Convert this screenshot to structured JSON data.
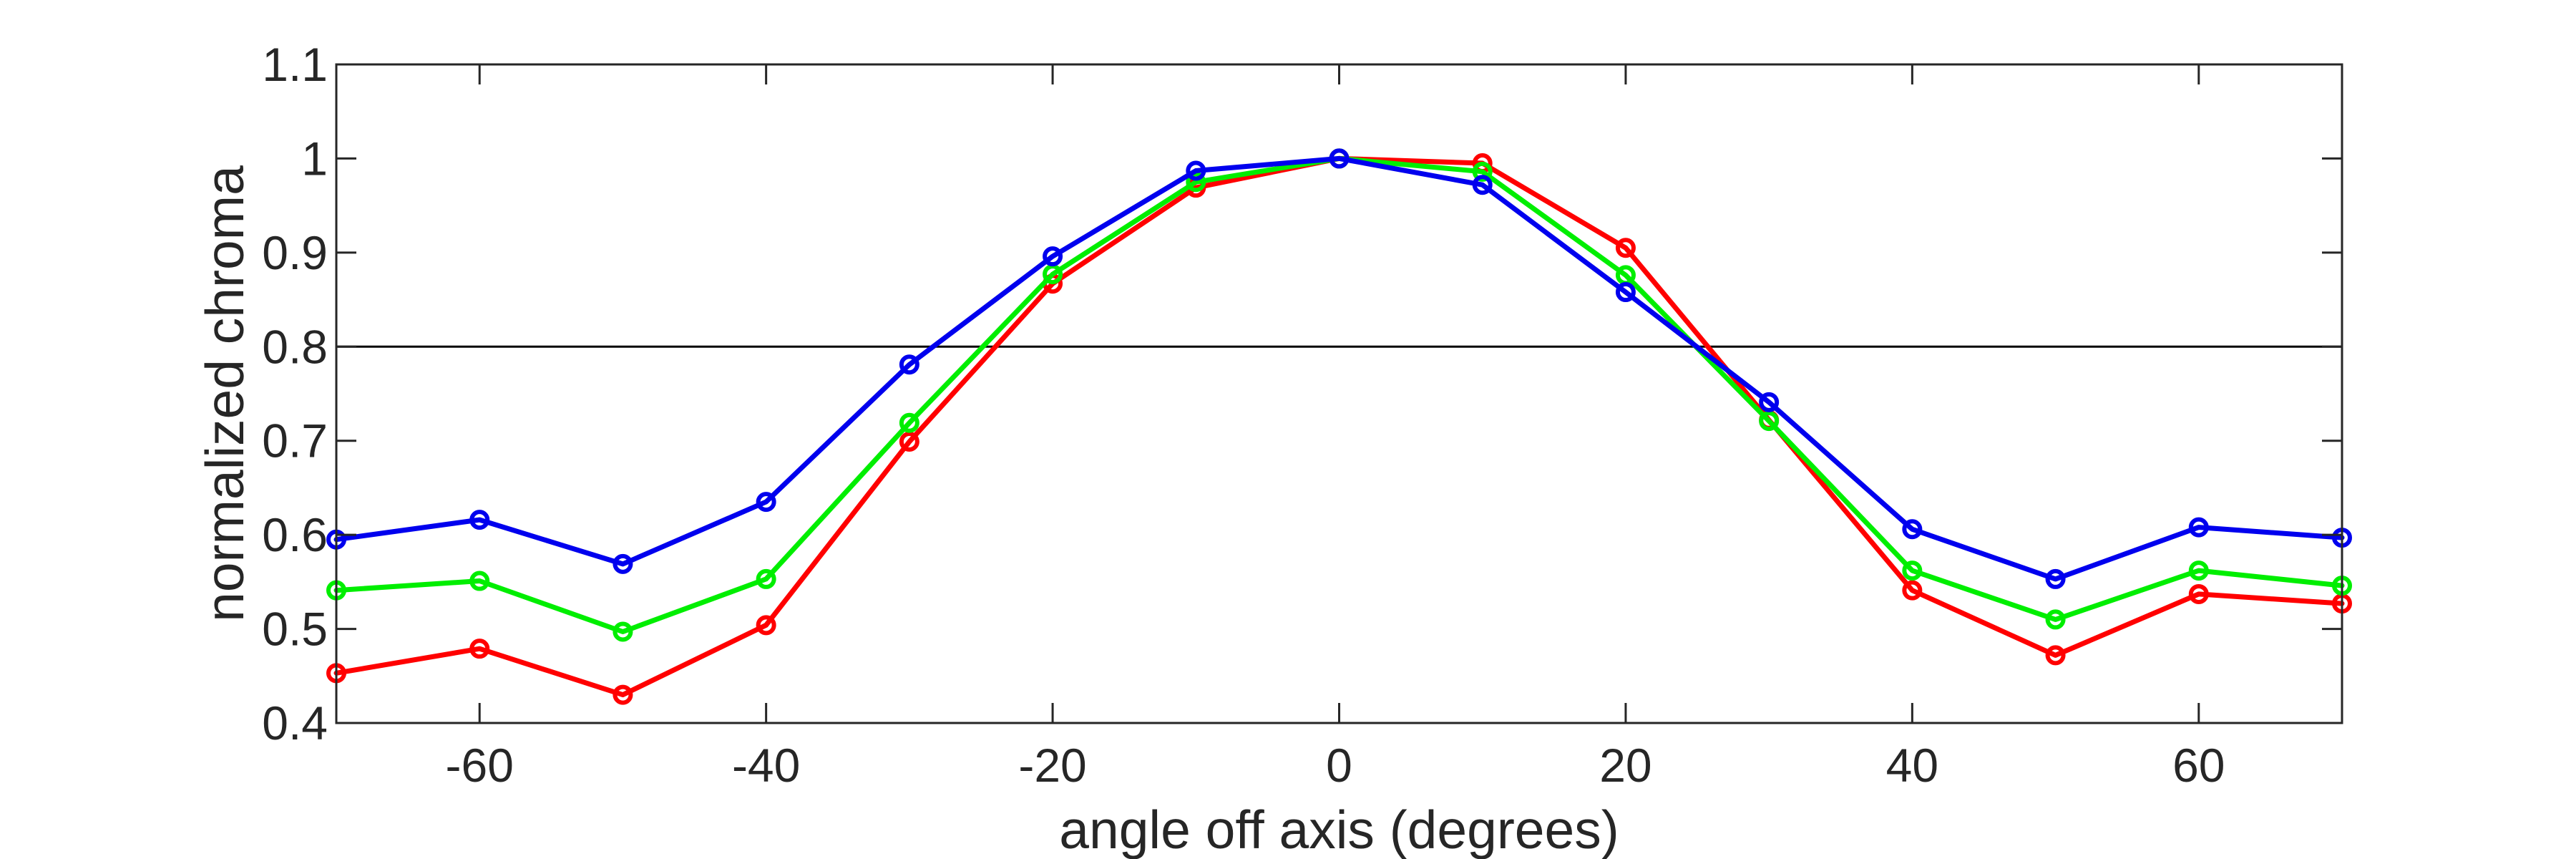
{
  "chart_data": {
    "type": "line",
    "title": "",
    "xlabel": "angle off axis (degrees)",
    "ylabel": "normalized chroma",
    "xlim": [
      -70,
      70
    ],
    "ylim": [
      0.4,
      1.1
    ],
    "xticks": [
      -60,
      -40,
      -20,
      0,
      20,
      40,
      60
    ],
    "yticks": [
      0.4,
      0.5,
      0.6,
      0.7,
      0.8,
      0.9,
      1,
      1.1
    ],
    "x": [
      -70,
      -60,
      -50,
      -40,
      -30,
      -20,
      -10,
      0,
      10,
      20,
      30,
      40,
      50,
      60,
      70
    ],
    "reference_line": {
      "y": 0.8,
      "color": "#000000"
    },
    "grid": false,
    "marker": "circle",
    "series": [
      {
        "color": "#ff0000",
        "values": [
          0.453,
          0.479,
          0.43,
          0.504,
          0.699,
          0.867,
          0.969,
          1.0,
          0.995,
          0.905,
          0.722,
          0.541,
          0.472,
          0.537,
          0.527
        ]
      },
      {
        "color": "#00ee00",
        "values": [
          0.541,
          0.551,
          0.497,
          0.553,
          0.719,
          0.877,
          0.975,
          1.0,
          0.986,
          0.876,
          0.721,
          0.562,
          0.51,
          0.562,
          0.546
        ]
      },
      {
        "color": "#0000ee",
        "values": [
          0.595,
          0.616,
          0.569,
          0.635,
          0.781,
          0.896,
          0.987,
          1.0,
          0.972,
          0.858,
          0.741,
          0.606,
          0.553,
          0.608,
          0.597
        ]
      }
    ]
  }
}
